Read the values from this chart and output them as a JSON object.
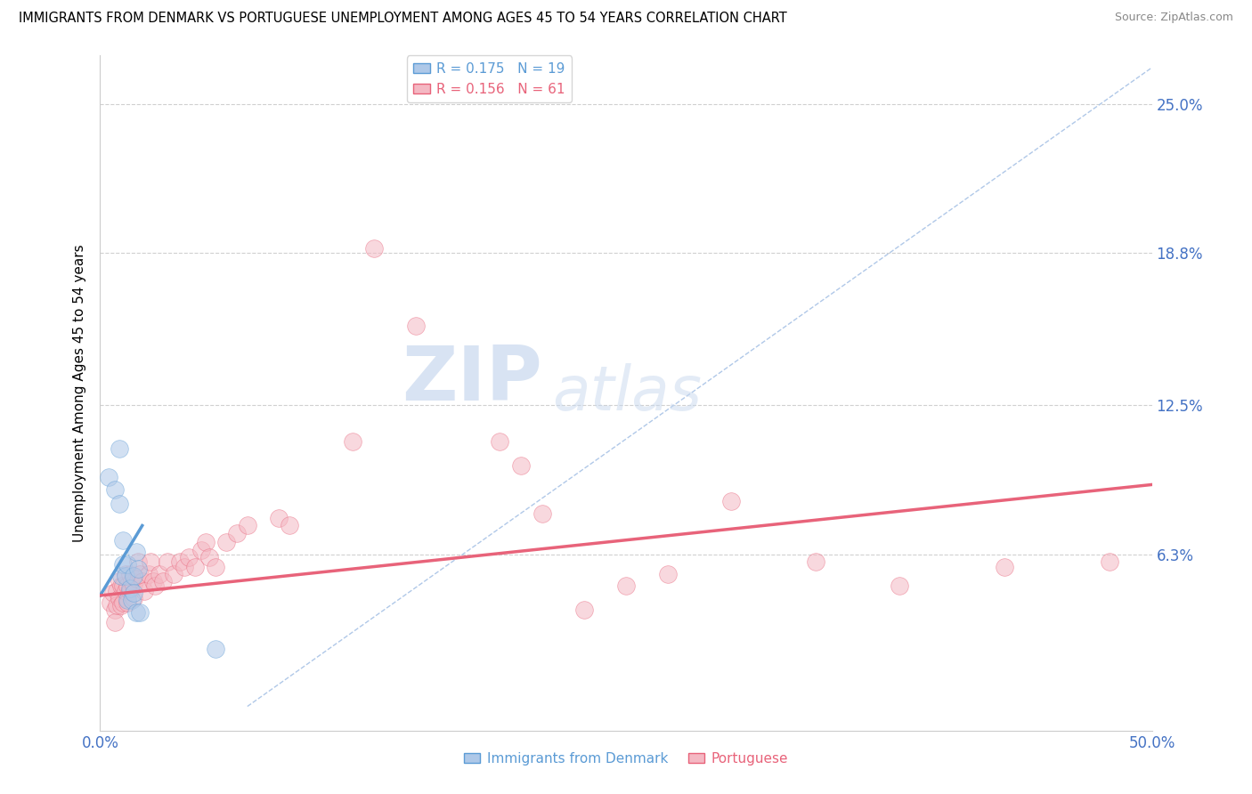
{
  "title": "IMMIGRANTS FROM DENMARK VS PORTUGUESE UNEMPLOYMENT AMONG AGES 45 TO 54 YEARS CORRELATION CHART",
  "source": "Source: ZipAtlas.com",
  "ylabel": "Unemployment Among Ages 45 to 54 years",
  "xlim": [
    0.0,
    0.5
  ],
  "ylim": [
    -0.01,
    0.27
  ],
  "yticks": [
    0.0,
    0.063,
    0.125,
    0.188,
    0.25
  ],
  "ytick_labels": [
    "",
    "6.3%",
    "12.5%",
    "18.8%",
    "25.0%"
  ],
  "xticks": [
    0.0,
    0.5
  ],
  "xtick_labels": [
    "0.0%",
    "50.0%"
  ],
  "legend_top": [
    {
      "label": "R = 0.175   N = 19",
      "color": "#5b9bd5"
    },
    {
      "label": "R = 0.156   N = 61",
      "color": "#e8637a"
    }
  ],
  "legend_bottom": [
    {
      "label": "Immigrants from Denmark",
      "color": "#5b9bd5"
    },
    {
      "label": "Portuguese",
      "color": "#e8637a"
    }
  ],
  "denmark_dots": [
    [
      0.004,
      0.095
    ],
    [
      0.007,
      0.09
    ],
    [
      0.009,
      0.107
    ],
    [
      0.009,
      0.084
    ],
    [
      0.01,
      0.054
    ],
    [
      0.011,
      0.069
    ],
    [
      0.011,
      0.059
    ],
    [
      0.012,
      0.054
    ],
    [
      0.013,
      0.059
    ],
    [
      0.013,
      0.044
    ],
    [
      0.014,
      0.049
    ],
    [
      0.015,
      0.044
    ],
    [
      0.016,
      0.054
    ],
    [
      0.016,
      0.047
    ],
    [
      0.017,
      0.064
    ],
    [
      0.018,
      0.057
    ],
    [
      0.017,
      0.039
    ],
    [
      0.019,
      0.039
    ],
    [
      0.055,
      0.024
    ]
  ],
  "portuguese_dots": [
    [
      0.005,
      0.043
    ],
    [
      0.006,
      0.047
    ],
    [
      0.007,
      0.04
    ],
    [
      0.007,
      0.035
    ],
    [
      0.008,
      0.048
    ],
    [
      0.008,
      0.042
    ],
    [
      0.009,
      0.052
    ],
    [
      0.009,
      0.045
    ],
    [
      0.01,
      0.05
    ],
    [
      0.01,
      0.042
    ],
    [
      0.011,
      0.05
    ],
    [
      0.011,
      0.043
    ],
    [
      0.012,
      0.055
    ],
    [
      0.012,
      0.048
    ],
    [
      0.013,
      0.05
    ],
    [
      0.013,
      0.043
    ],
    [
      0.014,
      0.055
    ],
    [
      0.014,
      0.048
    ],
    [
      0.015,
      0.052
    ],
    [
      0.016,
      0.05
    ],
    [
      0.016,
      0.045
    ],
    [
      0.017,
      0.053
    ],
    [
      0.018,
      0.06
    ],
    [
      0.019,
      0.055
    ],
    [
      0.02,
      0.052
    ],
    [
      0.021,
      0.048
    ],
    [
      0.023,
      0.055
    ],
    [
      0.024,
      0.06
    ],
    [
      0.025,
      0.052
    ],
    [
      0.026,
      0.05
    ],
    [
      0.028,
      0.055
    ],
    [
      0.03,
      0.052
    ],
    [
      0.032,
      0.06
    ],
    [
      0.035,
      0.055
    ],
    [
      0.038,
      0.06
    ],
    [
      0.04,
      0.058
    ],
    [
      0.042,
      0.062
    ],
    [
      0.045,
      0.058
    ],
    [
      0.048,
      0.065
    ],
    [
      0.05,
      0.068
    ],
    [
      0.052,
      0.062
    ],
    [
      0.055,
      0.058
    ],
    [
      0.06,
      0.068
    ],
    [
      0.065,
      0.072
    ],
    [
      0.07,
      0.075
    ],
    [
      0.085,
      0.078
    ],
    [
      0.09,
      0.075
    ],
    [
      0.12,
      0.11
    ],
    [
      0.13,
      0.19
    ],
    [
      0.15,
      0.158
    ],
    [
      0.19,
      0.11
    ],
    [
      0.2,
      0.1
    ],
    [
      0.21,
      0.08
    ],
    [
      0.23,
      0.04
    ],
    [
      0.25,
      0.05
    ],
    [
      0.27,
      0.055
    ],
    [
      0.3,
      0.085
    ],
    [
      0.34,
      0.06
    ],
    [
      0.38,
      0.05
    ],
    [
      0.43,
      0.058
    ],
    [
      0.48,
      0.06
    ]
  ],
  "denmark_line_x": [
    0.0,
    0.02
  ],
  "denmark_line_y": [
    0.046,
    0.075
  ],
  "portuguese_line_x": [
    0.0,
    0.5
  ],
  "portuguese_line_y": [
    0.046,
    0.092
  ],
  "diagonal_line_x": [
    0.07,
    0.5
  ],
  "diagonal_line_y": [
    0.0,
    0.265
  ],
  "watermark_zip": "ZIP",
  "watermark_atlas": "atlas",
  "denmark_color": "#5b9bd5",
  "danish_fill_color": "#aec8e8",
  "portuguese_color": "#e8637a",
  "portuguese_fill_color": "#f4b8c3",
  "gridline_color": "#d0d0d0",
  "dot_size": 200,
  "dot_alpha": 0.55
}
